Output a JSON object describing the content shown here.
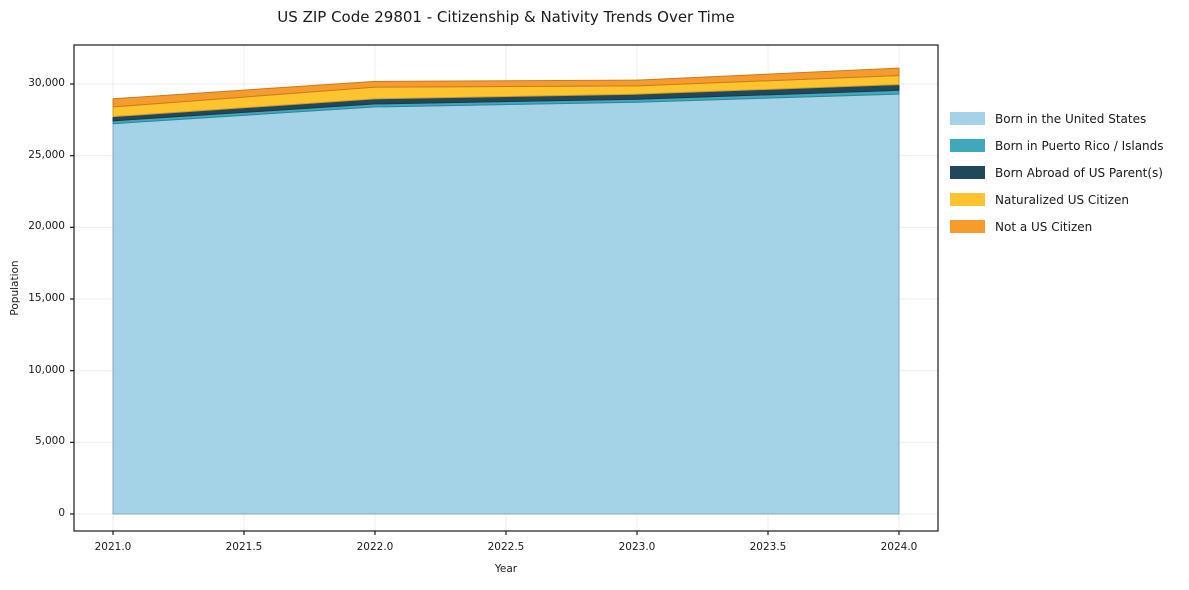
{
  "title": "US ZIP Code 29801 - Citizenship & Nativity Trends Over Time",
  "chart_data": {
    "type": "area",
    "stacked": true,
    "title": "US ZIP Code 29801 - Citizenship & Nativity Trends Over Time",
    "xlabel": "Year",
    "ylabel": "Population",
    "x": [
      2021,
      2022,
      2023,
      2024
    ],
    "series": [
      {
        "name": "Born in the United States",
        "color": "#a4d3e8",
        "values": [
          27230,
          28400,
          28730,
          29300
        ]
      },
      {
        "name": "Born in Puerto Rico / Islands",
        "color": "#3fa8bd",
        "values": [
          200,
          210,
          210,
          260
        ]
      },
      {
        "name": "Born Abroad of US Parent(s)",
        "color": "#21475c",
        "values": [
          290,
          350,
          350,
          400
        ]
      },
      {
        "name": "Naturalized US Citizen",
        "color": "#fdc42f",
        "values": [
          680,
          820,
          580,
          630
        ]
      },
      {
        "name": "Not a US Citizen",
        "color": "#f89b2d",
        "values": [
          570,
          400,
          400,
          520
        ]
      }
    ],
    "xticks": [
      2021.0,
      2021.5,
      2022.0,
      2022.5,
      2023.0,
      2023.5,
      2024.0
    ],
    "xtick_labels": [
      "2021.0",
      "2021.5",
      "2022.0",
      "2022.5",
      "2023.0",
      "2023.5",
      "2024.0"
    ],
    "yticks": [
      0,
      5000,
      10000,
      15000,
      20000,
      25000,
      30000
    ],
    "ytick_labels": [
      "0",
      "5,000",
      "10,000",
      "15,000",
      "20,000",
      "25,000",
      "30,000"
    ],
    "xlim": [
      2020.85,
      2024.15
    ],
    "ylim": [
      -1100,
      32700
    ],
    "grid": true,
    "legend_position": "right-outside",
    "axis_color": "#1a1a1a",
    "grid_color": "rgba(0,0,0,0.07)",
    "background": "#ffffff"
  }
}
